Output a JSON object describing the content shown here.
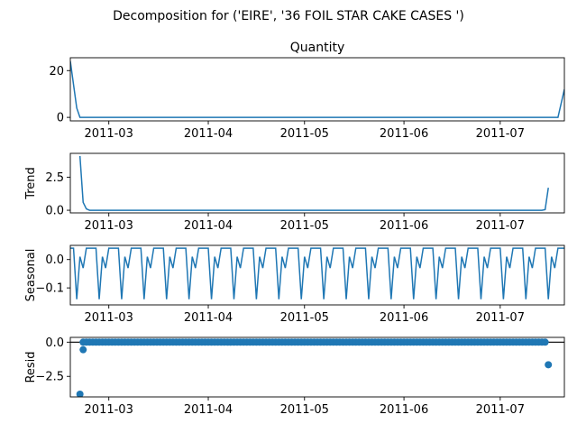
{
  "suptitle": "Decomposition for ('EIRE', '36 FOIL STAR CAKE CASES ')",
  "colors": {
    "series": "#1f77b4",
    "axes": "#000000",
    "background": "#ffffff"
  },
  "chart_data": [
    {
      "type": "line",
      "title": "Quantity",
      "ylabel": "",
      "x_range": [
        "2011-02-17",
        "2011-07-21"
      ],
      "ylim": [
        -1.5,
        25.5
      ],
      "yticks": [
        0,
        20
      ],
      "xticks": [
        "2011-03",
        "2011-04",
        "2011-05",
        "2011-06",
        "2011-07"
      ],
      "points": [
        [
          "2011-02-17",
          24
        ],
        [
          "2011-02-19",
          4
        ],
        [
          "2011-02-20",
          0
        ],
        [
          "2011-07-19",
          0
        ],
        [
          "2011-07-21",
          12
        ]
      ]
    },
    {
      "type": "line",
      "title": "",
      "ylabel": "Trend",
      "x_range": [
        "2011-02-17",
        "2011-07-21"
      ],
      "ylim": [
        -0.2,
        4.3
      ],
      "yticks": [
        0.0,
        2.5
      ],
      "ytick_labels": [
        "0.0",
        "2.5"
      ],
      "xticks": [
        "2011-03",
        "2011-04",
        "2011-05",
        "2011-06",
        "2011-07"
      ],
      "points": [
        [
          "2011-02-20",
          4.1
        ],
        [
          "2011-02-21",
          0.6
        ],
        [
          "2011-02-22",
          0.1
        ],
        [
          "2011-02-23",
          0.0
        ],
        [
          "2011-07-14",
          0.0
        ],
        [
          "2011-07-15",
          0.05
        ],
        [
          "2011-07-16",
          1.7
        ]
      ]
    },
    {
      "type": "line",
      "title": "",
      "ylabel": "Seasonal",
      "x_range": [
        "2011-02-17",
        "2011-07-21"
      ],
      "ylim": [
        -0.16,
        0.05
      ],
      "yticks": [
        0.0,
        -0.1
      ],
      "ytick_labels": [
        "0.0",
        "−0.1"
      ],
      "xticks": [
        "2011-03",
        "2011-04",
        "2011-05",
        "2011-06",
        "2011-07"
      ],
      "period_days": 7,
      "period_start": "2011-02-17",
      "weekly_pattern": [
        0.04,
        0.04,
        -0.14,
        0.01,
        -0.03,
        0.04,
        0.04
      ]
    },
    {
      "type": "scatter",
      "title": "",
      "ylabel": "Resid",
      "x_range": [
        "2011-02-17",
        "2011-07-21"
      ],
      "ylim": [
        -4.0,
        0.35
      ],
      "yticks": [
        0.0,
        -2.5
      ],
      "ytick_labels": [
        "0.0",
        "−2.5"
      ],
      "xticks": [
        "2011-03",
        "2011-04",
        "2011-05",
        "2011-06",
        "2011-07"
      ],
      "zero_line": true,
      "baseline_range": [
        "2011-02-21",
        "2011-07-15"
      ],
      "baseline_value": 0.0,
      "points": [
        [
          "2011-02-20",
          -3.8
        ],
        [
          "2011-02-21",
          -0.55
        ],
        [
          "2011-07-16",
          -1.65
        ]
      ]
    }
  ]
}
